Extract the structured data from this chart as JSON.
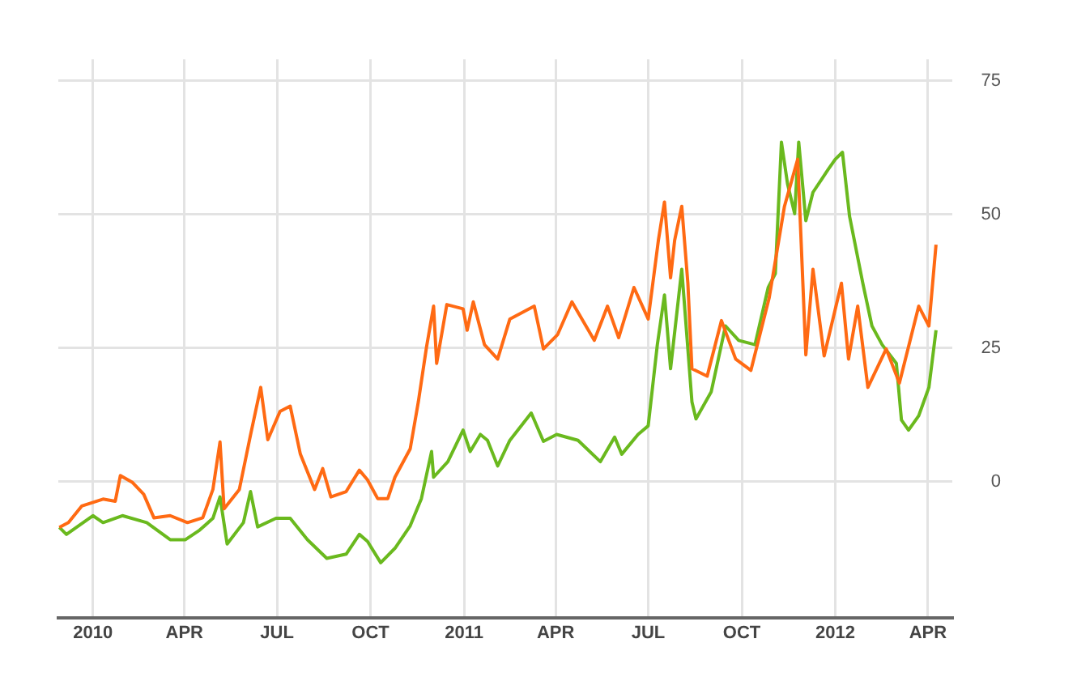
{
  "chart_data": {
    "type": "line",
    "xlim": [
      "2009-11-28",
      "2012-04-25"
    ],
    "xticks": [
      {
        "value": "2010-01-01",
        "label": "2010"
      },
      {
        "value": "2010-04-01",
        "label": "APR"
      },
      {
        "value": "2010-07-01",
        "label": "JUL"
      },
      {
        "value": "2010-10-01",
        "label": "OCT"
      },
      {
        "value": "2011-01-01",
        "label": "2011"
      },
      {
        "value": "2011-04-01",
        "label": "APR"
      },
      {
        "value": "2011-07-01",
        "label": "JUL"
      },
      {
        "value": "2011-10-01",
        "label": "OCT"
      },
      {
        "value": "2012-01-01",
        "label": "2012"
      },
      {
        "value": "2012-04-01",
        "label": "APR"
      }
    ],
    "ylim": [
      -25.5,
      79
    ],
    "yticks": [
      0,
      25,
      50,
      75
    ],
    "grid": true,
    "legend": false,
    "marker": "none",
    "line_style": "solid",
    "series": [
      {
        "color": "#ff6a13",
        "x": [
          "2009-11-29",
          "2009-12-08",
          "2009-12-21",
          "2010-01-11",
          "2010-01-23",
          "2010-01-28",
          "2010-02-09",
          "2010-02-20",
          "2010-03-02",
          "2010-03-18",
          "2010-04-04",
          "2010-04-19",
          "2010-04-29",
          "2010-05-06",
          "2010-05-10",
          "2010-05-25",
          "2010-06-05",
          "2010-06-15",
          "2010-06-22",
          "2010-07-04",
          "2010-07-14",
          "2010-07-24",
          "2010-08-07",
          "2010-08-15",
          "2010-08-23",
          "2010-09-07",
          "2010-09-20",
          "2010-09-28",
          "2010-10-08",
          "2010-10-18",
          "2010-10-25",
          "2010-11-09",
          "2010-11-17",
          "2010-11-25",
          "2010-12-02",
          "2010-12-05",
          "2010-12-15",
          "2010-12-31",
          "2011-01-04",
          "2011-01-10",
          "2011-01-21",
          "2011-02-03",
          "2011-02-15",
          "2011-03-11",
          "2011-03-20",
          "2011-04-03",
          "2011-04-17",
          "2011-05-09",
          "2011-05-22",
          "2011-06-02",
          "2011-06-17",
          "2011-07-01",
          "2011-07-11",
          "2011-07-17",
          "2011-07-23",
          "2011-07-27",
          "2011-08-03",
          "2011-08-09",
          "2011-08-13",
          "2011-08-28",
          "2011-09-11",
          "2011-09-25",
          "2011-10-10",
          "2011-10-28",
          "2011-11-12",
          "2011-11-25",
          "2011-12-03",
          "2011-12-10",
          "2011-12-21",
          "2012-01-07",
          "2012-01-14",
          "2012-01-23",
          "2012-02-02",
          "2012-02-20",
          "2012-03-04",
          "2012-03-23",
          "2012-04-02",
          "2012-04-09"
        ],
        "values": [
          -8.6,
          -7.7,
          -4.6,
          -3.3,
          -3.7,
          1.1,
          -0.2,
          -2.4,
          -6.8,
          -6.4,
          -7.7,
          -6.8,
          -1.5,
          7.4,
          -5.1,
          -1.5,
          8.7,
          17.6,
          7.8,
          13.1,
          14.1,
          5.1,
          -1.5,
          2.4,
          -2.9,
          -1.9,
          2.1,
          0.3,
          -3.2,
          -3.2,
          0.8,
          6.1,
          14.9,
          25.1,
          32.8,
          22.1,
          33.1,
          32.3,
          28.3,
          33.6,
          25.6,
          22.9,
          30.4,
          32.8,
          24.8,
          27.5,
          33.6,
          26.4,
          32.8,
          26.9,
          36.3,
          30.4,
          45.1,
          52.3,
          38.1,
          45.1,
          51.5,
          37.1,
          21.1,
          19.7,
          30.1,
          22.9,
          20.8,
          34.4,
          51.5,
          60.3,
          23.7,
          39.7,
          23.5,
          37.1,
          22.9,
          32.8,
          17.6,
          24.8,
          18.4,
          32.8,
          29.1,
          44.3
        ]
      },
      {
        "color": "#6ab91e",
        "x": [
          "2009-11-29",
          "2009-12-06",
          "2010-01-01",
          "2010-01-11",
          "2010-01-30",
          "2010-02-23",
          "2010-03-18",
          "2010-04-02",
          "2010-04-16",
          "2010-04-29",
          "2010-05-06",
          "2010-05-13",
          "2010-05-29",
          "2010-06-05",
          "2010-06-12",
          "2010-06-30",
          "2010-07-14",
          "2010-07-31",
          "2010-08-19",
          "2010-09-07",
          "2010-09-20",
          "2010-09-28",
          "2010-10-11",
          "2010-10-25",
          "2010-11-09",
          "2010-11-20",
          "2010-11-30",
          "2010-12-02",
          "2010-12-16",
          "2010-12-31",
          "2011-01-07",
          "2011-01-17",
          "2011-01-24",
          "2011-02-03",
          "2011-02-15",
          "2011-03-08",
          "2011-03-20",
          "2011-04-02",
          "2011-04-23",
          "2011-05-15",
          "2011-05-29",
          "2011-06-05",
          "2011-06-21",
          "2011-07-01",
          "2011-07-10",
          "2011-07-17",
          "2011-07-23",
          "2011-08-03",
          "2011-08-13",
          "2011-08-17",
          "2011-09-01",
          "2011-09-15",
          "2011-09-28",
          "2011-10-14",
          "2011-10-27",
          "2011-11-03",
          "2011-11-09",
          "2011-11-15",
          "2011-11-22",
          "2011-11-26",
          "2011-12-03",
          "2011-12-10",
          "2011-12-25",
          "2012-01-01",
          "2012-01-08",
          "2012-01-15",
          "2012-01-28",
          "2012-02-06",
          "2012-02-16",
          "2012-03-01",
          "2012-03-06",
          "2012-03-13",
          "2012-03-23",
          "2012-04-02",
          "2012-04-09"
        ],
        "values": [
          -8.6,
          -9.9,
          -6.4,
          -7.7,
          -6.4,
          -7.7,
          -10.9,
          -10.9,
          -9.1,
          -6.9,
          -2.9,
          -11.7,
          -7.7,
          -1.9,
          -8.5,
          -6.9,
          -6.9,
          -10.9,
          -14.4,
          -13.6,
          -9.9,
          -11.2,
          -15.2,
          -12.5,
          -8.3,
          -3.2,
          5.6,
          0.8,
          3.7,
          9.6,
          5.6,
          8.8,
          7.7,
          2.9,
          7.7,
          12.8,
          7.5,
          8.8,
          7.7,
          3.7,
          8.3,
          5.1,
          8.8,
          10.4,
          25.6,
          34.9,
          21.1,
          39.7,
          14.9,
          11.7,
          16.8,
          29.1,
          26.4,
          25.6,
          36.3,
          38.9,
          63.5,
          55.7,
          50.1,
          63.5,
          48.8,
          54.1,
          58.4,
          60.3,
          61.6,
          49.6,
          37.1,
          29.1,
          25.6,
          22.1,
          11.5,
          9.6,
          12.3,
          17.6,
          28.3
        ]
      }
    ]
  }
}
